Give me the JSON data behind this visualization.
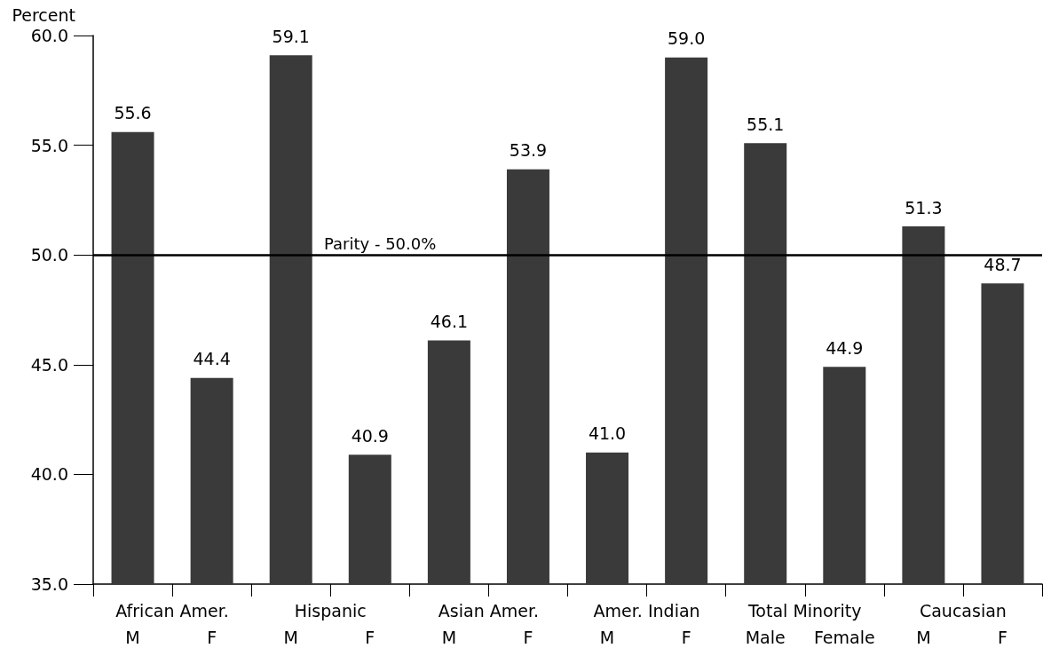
{
  "chart_data": {
    "type": "bar",
    "ylabel": "Percent",
    "categories": [
      "M",
      "F",
      "M",
      "F",
      "M",
      "F",
      "M",
      "F",
      "Male",
      "Female",
      "M",
      "F"
    ],
    "values": [
      55.6,
      44.4,
      59.1,
      40.9,
      46.1,
      53.9,
      41.0,
      59.0,
      55.1,
      44.9,
      51.3,
      48.7
    ],
    "color": "#3a3a3a",
    "ylim": [
      35,
      60
    ],
    "yticks": [
      {
        "value": 35,
        "label": "35.0"
      },
      {
        "value": 40,
        "label": "40.0"
      },
      {
        "value": 45,
        "label": "45.0"
      },
      {
        "value": 50,
        "label": "50.0"
      },
      {
        "value": 55,
        "label": "55.0"
      },
      {
        "value": 60,
        "label": "60.0"
      }
    ],
    "value_labels": [
      "55.6",
      "44.4",
      "59.1",
      "40.9",
      "46.1",
      "53.9",
      "41.0",
      "59.0",
      "55.1",
      "44.9",
      "51.3",
      "48.7"
    ],
    "ref_lines": [
      {
        "axis": "y",
        "value": 50,
        "label": "Parity - 50.0%",
        "color": "#000000"
      }
    ],
    "annotations": [
      "African Amer.",
      "Hispanic",
      "Asian Amer.",
      "Amer. Indian",
      "Total Minority",
      "Caucasian"
    ],
    "grid": false
  }
}
